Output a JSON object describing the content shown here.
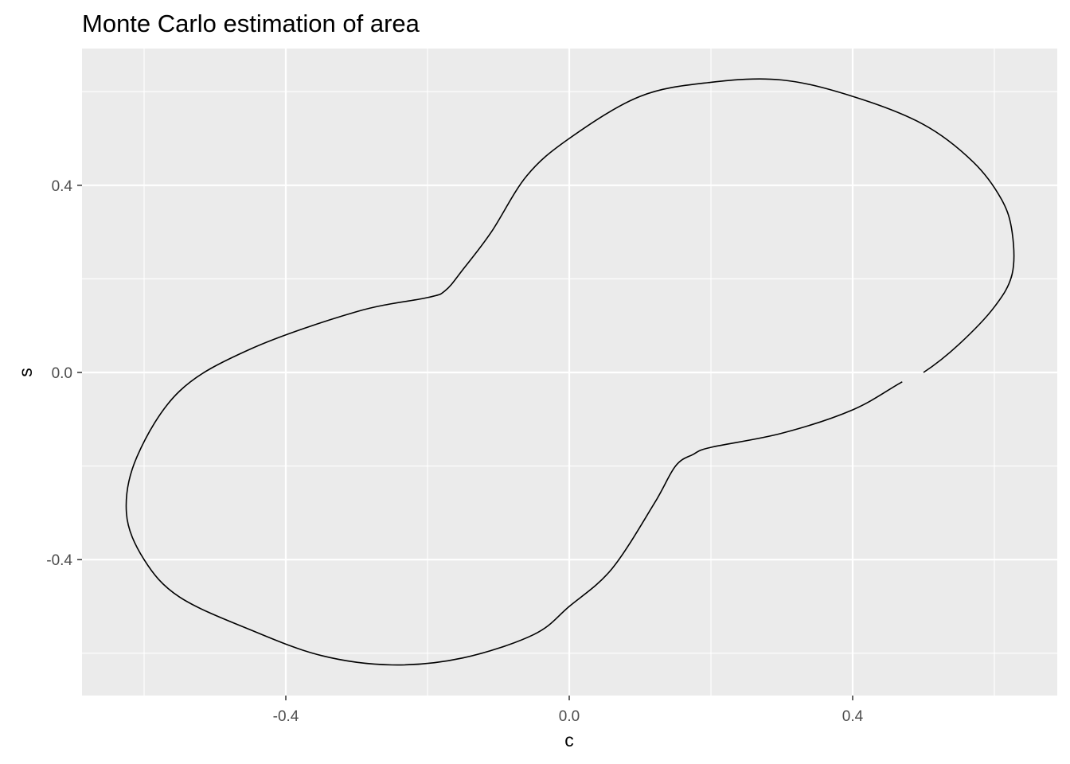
{
  "chart_data": {
    "type": "line",
    "title": "Monte Carlo estimation of area",
    "xlabel": "c",
    "ylabel": "s",
    "xlim": [
      -0.6,
      0.6
    ],
    "ylim": [
      -0.62,
      0.62
    ],
    "x_ticks": [
      {
        "value": -0.4,
        "label": "-0.4"
      },
      {
        "value": 0.0,
        "label": "0.0"
      },
      {
        "value": 0.4,
        "label": "0.4"
      }
    ],
    "y_ticks": [
      {
        "value": -0.4,
        "label": "-0.4"
      },
      {
        "value": 0.0,
        "label": "0.0"
      },
      {
        "value": 0.4,
        "label": "0.4"
      }
    ],
    "grid": true,
    "background": "#ebebeb",
    "grid_color": "#ffffff",
    "line_color": "#000000",
    "series": [
      {
        "points": [
          [
            0.5,
            0.0
          ],
          [
            0.55,
            0.06
          ],
          [
            0.6,
            0.14
          ],
          [
            0.625,
            0.21
          ],
          [
            0.625,
            0.3
          ],
          [
            0.61,
            0.37
          ],
          [
            0.57,
            0.45
          ],
          [
            0.5,
            0.53
          ],
          [
            0.4,
            0.59
          ],
          [
            0.3,
            0.625
          ],
          [
            0.2,
            0.62
          ],
          [
            0.1,
            0.59
          ],
          [
            0.0,
            0.5
          ],
          [
            -0.06,
            0.42
          ],
          [
            -0.11,
            0.3
          ],
          [
            -0.15,
            0.22
          ],
          [
            -0.175,
            0.175
          ],
          [
            -0.2,
            0.16
          ],
          [
            -0.3,
            0.13
          ],
          [
            -0.45,
            0.05
          ],
          [
            -0.55,
            -0.04
          ],
          [
            -0.61,
            -0.18
          ],
          [
            -0.625,
            -0.3
          ],
          [
            -0.6,
            -0.4
          ],
          [
            -0.55,
            -0.48
          ],
          [
            -0.45,
            -0.55
          ],
          [
            -0.35,
            -0.605
          ],
          [
            -0.25,
            -0.625
          ],
          [
            -0.15,
            -0.61
          ],
          [
            -0.05,
            -0.56
          ],
          [
            0.0,
            -0.5
          ],
          [
            0.06,
            -0.42
          ],
          [
            0.12,
            -0.28
          ],
          [
            0.15,
            -0.2
          ],
          [
            0.175,
            -0.175
          ],
          [
            0.2,
            -0.16
          ],
          [
            0.3,
            -0.13
          ],
          [
            0.4,
            -0.08
          ],
          [
            0.47,
            -0.02
          ]
        ]
      }
    ]
  }
}
